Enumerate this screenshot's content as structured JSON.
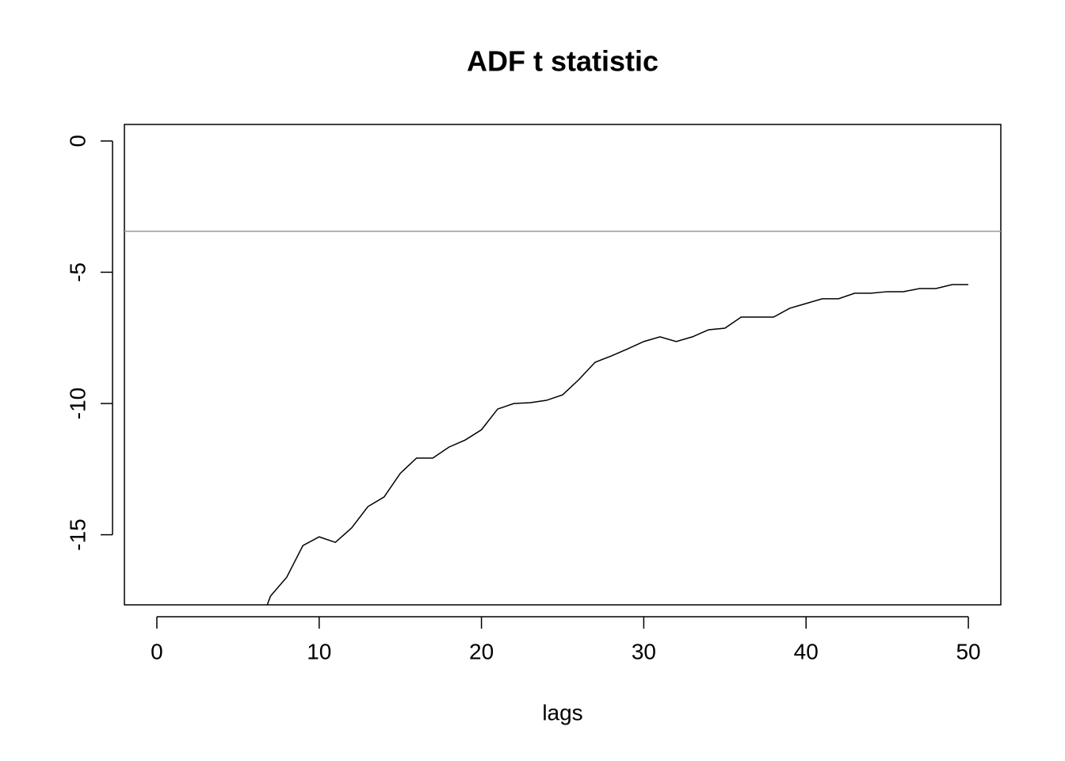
{
  "chart_data": {
    "type": "line",
    "title": "ADF t statistic",
    "x_label": "lags",
    "x": [
      6,
      7,
      8,
      9,
      10,
      11,
      12,
      13,
      14,
      15,
      16,
      17,
      18,
      19,
      20,
      21,
      22,
      23,
      24,
      25,
      26,
      27,
      28,
      29,
      30,
      31,
      32,
      33,
      34,
      35,
      36,
      37,
      38,
      39,
      40,
      41,
      42,
      43,
      44,
      45,
      46,
      47,
      48,
      49,
      50
    ],
    "series": [
      {
        "color": "#000000",
        "values": [
          -19.0,
          -17.34,
          -16.62,
          -15.41,
          -15.08,
          -15.29,
          -14.74,
          -13.93,
          -13.56,
          -12.66,
          -12.08,
          -12.08,
          -11.66,
          -11.39,
          -11.0,
          -10.21,
          -10.0,
          -9.97,
          -9.88,
          -9.67,
          -9.09,
          -8.43,
          -8.19,
          -7.92,
          -7.64,
          -7.46,
          -7.64,
          -7.46,
          -7.19,
          -7.13,
          -6.71,
          -6.71,
          -6.71,
          -6.37,
          -6.19,
          -6.01,
          -6.01,
          -5.8,
          -5.8,
          -5.74,
          -5.74,
          -5.62,
          -5.62,
          -5.47,
          -5.47
        ]
      }
    ],
    "hline": {
      "value": -3.44,
      "color": "#999999"
    },
    "xlim": [
      -2,
      52
    ],
    "ylim": [
      -17.67,
      0.63
    ],
    "xticks": [
      0,
      10,
      20,
      30,
      40,
      50
    ],
    "yticks": [
      0,
      -5,
      -10,
      -15
    ]
  }
}
